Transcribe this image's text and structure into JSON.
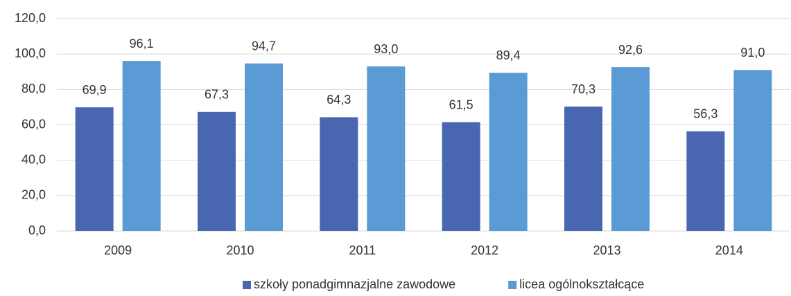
{
  "chart_data": {
    "type": "bar",
    "categories": [
      "2009",
      "2010",
      "2011",
      "2012",
      "2013",
      "2014"
    ],
    "series": [
      {
        "name": "szkoły ponadgimnazjalne zawodowe",
        "color": "#4867b0",
        "values": [
          69.9,
          67.3,
          64.3,
          61.5,
          70.3,
          56.3
        ],
        "value_labels": [
          "69,9",
          "67,3",
          "64,3",
          "61,5",
          "70,3",
          "56,3"
        ]
      },
      {
        "name": "licea ogólnokształcące",
        "color": "#5b9bd5",
        "values": [
          96.1,
          94.7,
          93.0,
          89.4,
          92.6,
          91.0
        ],
        "value_labels": [
          "96,1",
          "94,7",
          "93,0",
          "89,4",
          "92,6",
          "91,0"
        ]
      }
    ],
    "ylim": [
      0,
      120
    ],
    "yticks": [
      {
        "value": 0,
        "label": "0,0"
      },
      {
        "value": 20,
        "label": "20,0"
      },
      {
        "value": 40,
        "label": "40,0"
      },
      {
        "value": 60,
        "label": "60,0"
      },
      {
        "value": 80,
        "label": "80,0"
      },
      {
        "value": 100,
        "label": "100,0"
      },
      {
        "value": 120,
        "label": "120,0"
      }
    ],
    "grid": true,
    "legend": "bottom"
  }
}
